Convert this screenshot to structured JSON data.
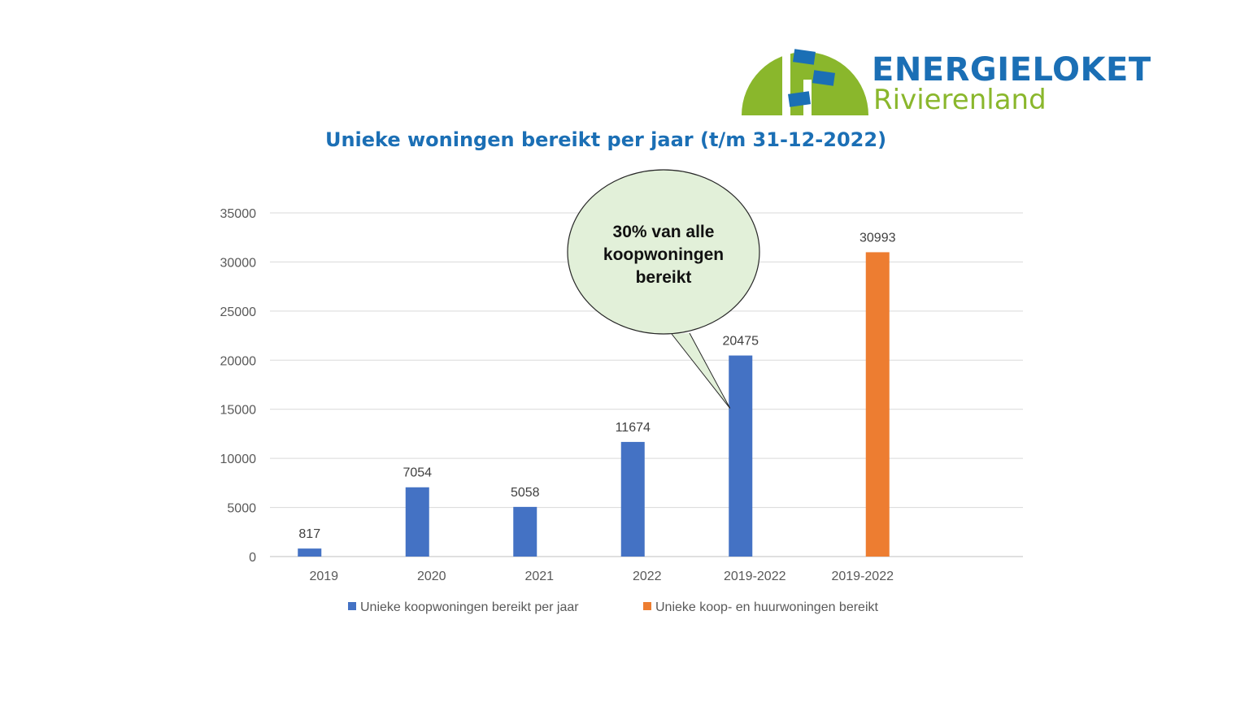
{
  "logo": {
    "word1": "ENERGIELOKET",
    "word2": "Rivierenland",
    "green": "#8ab72c",
    "blue": "#1b6fb5"
  },
  "chart_data": {
    "type": "bar",
    "title": "Unieke woningen bereikt per jaar (t/m 31-12-2022)",
    "categories": [
      "2019",
      "2020",
      "2021",
      "2022",
      "2019-2022",
      "2019-2022"
    ],
    "series": [
      {
        "name": "Unieke koopwoningen bereikt per jaar",
        "color": "#4472c4",
        "values": [
          817,
          7054,
          5058,
          11674,
          20475,
          null
        ]
      },
      {
        "name": "Unieke koop- en huurwoningen bereikt",
        "color": "#ed7d31",
        "values": [
          null,
          null,
          null,
          null,
          null,
          30993
        ]
      }
    ],
    "ylim": [
      0,
      35000
    ],
    "yticks": [
      "0",
      "5000",
      "10000",
      "15000",
      "20000",
      "25000",
      "30000",
      "35000"
    ],
    "grid": true,
    "legend_position": "bottom",
    "annotation": {
      "lines": [
        "30% van alle",
        "koopwoningen",
        "bereikt"
      ],
      "points_to": "2019-2022",
      "fill": "#e2f0d9"
    }
  }
}
